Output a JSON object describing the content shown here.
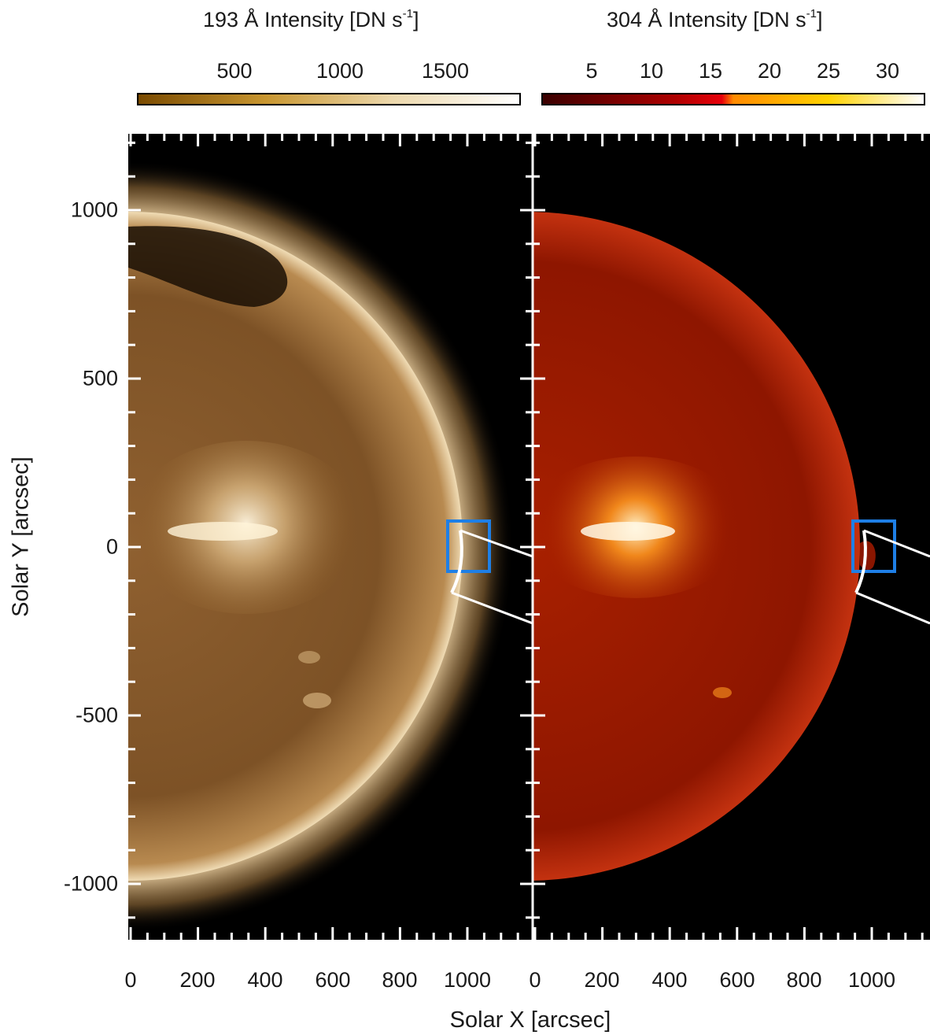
{
  "colorbars": {
    "left": {
      "title": "193 Å Intensity [DN s",
      "title_sup": "-1",
      "title_end": "]",
      "ticks": [
        "500",
        "1000",
        "1500"
      ],
      "colors": [
        "#7a4a00",
        "#c89630",
        "#ecd8ac",
        "#ffffff"
      ]
    },
    "right": {
      "title": "304 Å Intensity [DN s",
      "title_sup": "-1",
      "title_end": "]",
      "ticks": [
        "5",
        "10",
        "15",
        "20",
        "25",
        "30"
      ],
      "colors": [
        "#3a0000",
        "#b00000",
        "#e8000a",
        "#ff8a00",
        "#ffd200",
        "#ffffff"
      ]
    }
  },
  "axes": {
    "y_title": "Solar Y [arcsec]",
    "x_title": "Solar X [arcsec]",
    "y_ticks": [
      "1000",
      "500",
      "0",
      "-500",
      "-1000"
    ],
    "x_ticks_left": [
      "0",
      "200",
      "400",
      "600",
      "800",
      "1000"
    ],
    "x_ticks_right": [
      "0",
      "200",
      "400",
      "600",
      "800",
      "1000"
    ]
  },
  "panels": {
    "left": {
      "wavelength": "193 Å",
      "disk_color": "#8a5a22",
      "rim_color": "#e8cda0"
    },
    "right": {
      "wavelength": "304 Å",
      "disk_color": "#9a1800",
      "rim_color": "#c83a10"
    }
  },
  "overlays": {
    "box_color": "#1e7fe6",
    "slit_color": "#ffffff"
  }
}
